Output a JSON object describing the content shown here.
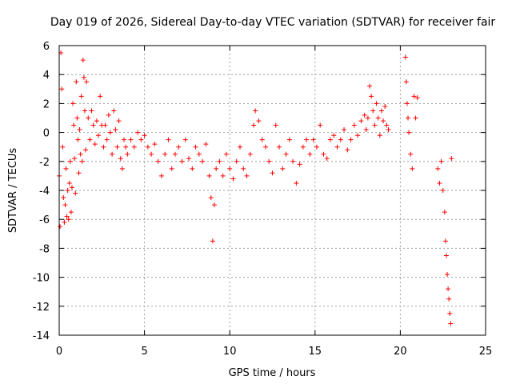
{
  "chart_data": {
    "type": "scatter",
    "title": "Day 019 of 2026, Sidereal Day-to-day VTEC variation (SDTVAR) for receiver fair",
    "xlabel": "GPS time / hours",
    "ylabel": "SDTVAR / TECUs",
    "xlim": [
      0,
      25
    ],
    "ylim": [
      -14,
      6
    ],
    "xticks": [
      "0",
      "5",
      "10",
      "15",
      "20",
      "25"
    ],
    "yticks": [
      "6",
      "4",
      "2",
      "0",
      "-2",
      "-4",
      "-6",
      "-8",
      "-10",
      "-12",
      "-14"
    ],
    "grid": true,
    "marker": "plus",
    "color": "#ff0000",
    "series": [
      {
        "name": "SDTVAR",
        "x": [
          0.0,
          0.05,
          0.1,
          0.15,
          0.2,
          0.25,
          0.3,
          0.35,
          0.4,
          0.45,
          0.5,
          0.55,
          0.6,
          0.65,
          0.7,
          0.75,
          0.8,
          0.85,
          0.9,
          0.95,
          1.0,
          1.05,
          1.1,
          1.15,
          1.2,
          1.25,
          1.3,
          1.35,
          1.4,
          1.45,
          1.5,
          1.55,
          1.6,
          1.7,
          1.8,
          1.9,
          2.0,
          2.1,
          2.2,
          2.3,
          2.4,
          2.5,
          2.6,
          2.7,
          2.8,
          2.9,
          3.0,
          3.1,
          3.2,
          3.3,
          3.4,
          3.5,
          3.6,
          3.7,
          3.8,
          3.9,
          4.0,
          4.2,
          4.4,
          4.6,
          4.8,
          5.0,
          5.2,
          5.4,
          5.6,
          5.8,
          6.0,
          6.2,
          6.4,
          6.6,
          6.8,
          7.0,
          7.2,
          7.4,
          7.6,
          7.8,
          8.0,
          8.2,
          8.4,
          8.6,
          8.8,
          8.9,
          9.0,
          9.1,
          9.2,
          9.4,
          9.6,
          9.8,
          10.0,
          10.2,
          10.4,
          10.6,
          10.8,
          11.0,
          11.2,
          11.4,
          11.5,
          11.7,
          11.9,
          12.1,
          12.3,
          12.5,
          12.7,
          12.9,
          13.1,
          13.3,
          13.5,
          13.7,
          13.9,
          14.1,
          14.3,
          14.5,
          14.7,
          14.9,
          15.1,
          15.3,
          15.5,
          15.7,
          15.9,
          16.1,
          16.3,
          16.5,
          16.7,
          16.9,
          17.1,
          17.3,
          17.5,
          17.7,
          17.9,
          18.0,
          18.1,
          18.2,
          18.3,
          18.4,
          18.5,
          18.6,
          18.7,
          18.8,
          18.9,
          19.0,
          19.1,
          19.2,
          19.3,
          20.3,
          20.35,
          20.4,
          20.45,
          20.5,
          20.6,
          20.7,
          20.8,
          20.9,
          21.0,
          22.2,
          22.3,
          22.4,
          22.5,
          22.6,
          22.65,
          22.7,
          22.75,
          22.8,
          22.85,
          22.9,
          22.95,
          23.0
        ],
        "y": [
          -3.0,
          -6.5,
          5.5,
          3.0,
          -1.0,
          -4.5,
          -6.2,
          -5.0,
          -2.5,
          -5.8,
          -4.0,
          -6.0,
          -3.5,
          -2.0,
          -5.5,
          -3.8,
          2.0,
          0.5,
          -1.8,
          -4.2,
          3.5,
          1.0,
          -0.5,
          -2.8,
          0.2,
          -1.5,
          2.5,
          -2.0,
          5.0,
          3.8,
          1.5,
          -1.2,
          3.5,
          1.0,
          -0.5,
          1.5,
          0.5,
          -0.8,
          0.8,
          -0.2,
          2.5,
          0.5,
          -1.0,
          0.5,
          -0.5,
          1.2,
          0.0,
          -1.5,
          1.5,
          0.2,
          -1.0,
          0.8,
          -1.8,
          -2.5,
          -0.5,
          -1.0,
          -1.5,
          -0.5,
          -1.0,
          0.0,
          -0.5,
          -0.2,
          -1.0,
          -1.5,
          -0.8,
          -2.0,
          -3.0,
          -1.5,
          -0.5,
          -2.5,
          -1.5,
          -1.0,
          -2.0,
          -0.5,
          -1.8,
          -2.5,
          -1.0,
          -1.5,
          -2.0,
          -0.8,
          -3.0,
          -4.5,
          -7.5,
          -5.0,
          -2.5,
          -2.0,
          -3.0,
          -1.5,
          -2.5,
          -3.2,
          -2.0,
          -1.0,
          -2.5,
          -3.0,
          -1.5,
          0.5,
          1.5,
          0.8,
          -0.5,
          -1.0,
          -2.0,
          -2.8,
          0.5,
          -1.0,
          -2.5,
          -1.5,
          -0.5,
          -2.0,
          -3.5,
          -2.2,
          -1.0,
          -0.5,
          -1.5,
          -0.5,
          -1.0,
          0.5,
          -1.5,
          -1.8,
          -0.5,
          -0.2,
          -1.0,
          -0.5,
          0.2,
          -1.2,
          -0.5,
          0.5,
          -0.2,
          0.8,
          1.2,
          0.2,
          1.0,
          3.2,
          2.5,
          1.5,
          0.5,
          2.0,
          1.0,
          -0.2,
          1.5,
          0.8,
          1.8,
          0.5,
          0.2,
          5.2,
          3.5,
          2.0,
          1.0,
          0.0,
          -1.5,
          -2.5,
          2.5,
          1.0,
          2.4,
          -2.5,
          -3.5,
          -2.0,
          -4.0,
          -5.5,
          -7.5,
          -8.5,
          -9.8,
          -10.8,
          -11.5,
          -12.5,
          -13.2,
          -1.8
        ]
      }
    ]
  }
}
